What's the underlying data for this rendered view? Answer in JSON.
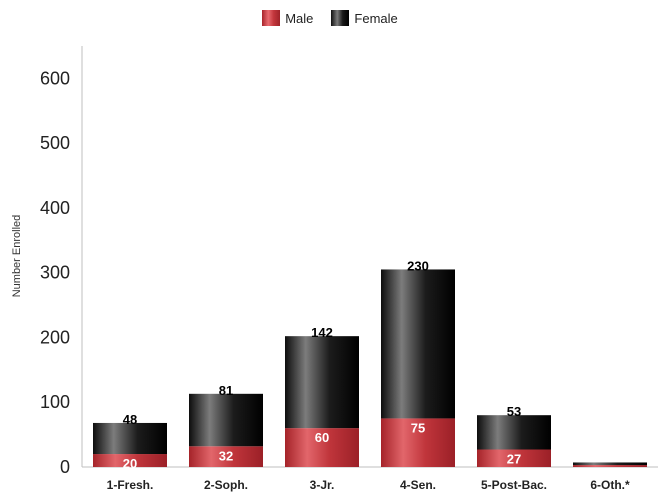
{
  "legend": {
    "male_label": "Male",
    "female_label": "Female"
  },
  "chart_data": {
    "type": "bar",
    "stacked": true,
    "categories": [
      "1-Fresh.",
      "2-Soph.",
      "3-Jr.",
      "4-Sen.",
      "5-Post-Bac.",
      "6-Oth.*"
    ],
    "series": [
      {
        "name": "Male",
        "values": [
          20,
          32,
          60,
          75,
          27,
          3
        ],
        "color": "#c0353b"
      },
      {
        "name": "Female",
        "values": [
          48,
          81,
          142,
          230,
          53,
          4
        ],
        "color": "#111111"
      }
    ],
    "male_labels": [
      "20",
      "32",
      "60",
      "75",
      "27",
      ""
    ],
    "female_labels": [
      "48",
      "81",
      "142",
      "230",
      "53",
      ""
    ],
    "ylabel": "Number Enrolled",
    "xlabel": "",
    "ylim": [
      0,
      650
    ],
    "yticks": [
      0,
      100,
      200,
      300,
      400,
      500,
      600
    ],
    "grid": false,
    "legend_position": "top-center"
  }
}
